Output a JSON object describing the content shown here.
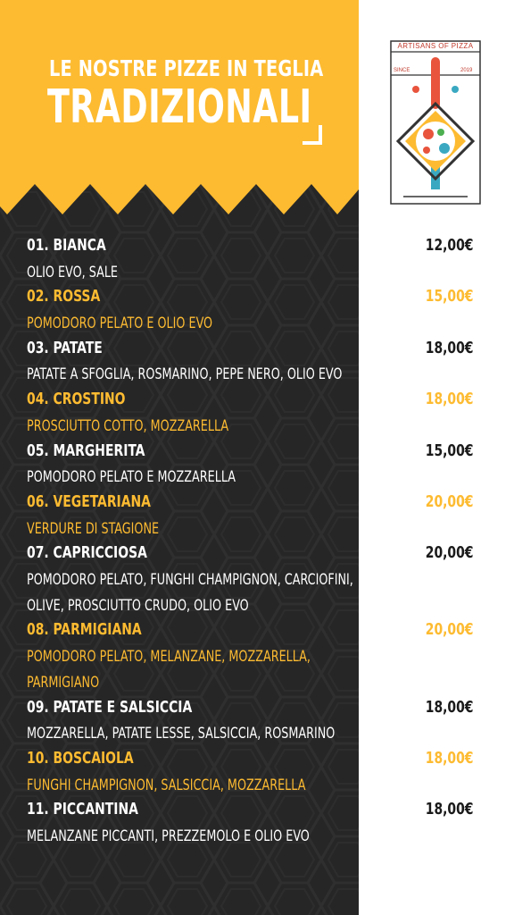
{
  "header": {
    "subtitle": "LE NOSTRE PIZZE IN TEGLIA",
    "title": "TRADIZIONALI"
  },
  "logo": {
    "brand": "ARTISANS OF PIZZA",
    "since_label": "SINCE",
    "since_year": "2019"
  },
  "colors": {
    "accent": "#fdbb31",
    "dark": "#262626",
    "logo_red": "#c0392b"
  },
  "menu": [
    {
      "name": "01. BIANCA",
      "price": "12,00€",
      "desc": [
        "OLIO EVO, SALE"
      ]
    },
    {
      "name": "02. ROSSA",
      "price": "15,00€",
      "desc": [
        "POMODORO PELATO E OLIO EVO"
      ]
    },
    {
      "name": "03. PATATE",
      "price": "18,00€",
      "desc": [
        "PATATE A SFOGLIA, ROSMARINO, PEPE NERO, OLIO EVO"
      ]
    },
    {
      "name": "04. CROSTINO",
      "price": "18,00€",
      "desc": [
        "PROSCIUTTO COTTO, MOZZARELLA"
      ]
    },
    {
      "name": "05. MARGHERITA",
      "price": "15,00€",
      "desc": [
        "POMODORO PELATO E MOZZARELLA"
      ]
    },
    {
      "name": "06. VEGETARIANA",
      "price": "20,00€",
      "desc": [
        "VERDURE DI STAGIONE"
      ]
    },
    {
      "name": "07. CAPRICCIOSA",
      "price": "20,00€",
      "desc": [
        "POMODORO PELATO, FUNGHI CHAMPIGNON, CARCIOFINI,",
        "OLIVE, PROSCIUTTO CRUDO, OLIO EVO"
      ]
    },
    {
      "name": "08. PARMIGIANA",
      "price": "20,00€",
      "desc": [
        "POMODORO PELATO, MELANZANE, MOZZARELLA,",
        "PARMIGIANO"
      ]
    },
    {
      "name": "09. PATATE E SALSICCIA",
      "price": "18,00€",
      "desc": [
        "MOZZARELLA, PATATE LESSE, SALSICCIA, ROSMARINO"
      ]
    },
    {
      "name": "10. BOSCAIOLA",
      "price": "18,00€",
      "desc": [
        "FUNGHI CHAMPIGNON, SALSICCIA, MOZZARELLA"
      ]
    },
    {
      "name": "11. PICCANTINA",
      "price": "18,00€",
      "desc": [
        "MELANZANE PICCANTI, PREZZEMOLO E OLIO EVO"
      ]
    }
  ]
}
